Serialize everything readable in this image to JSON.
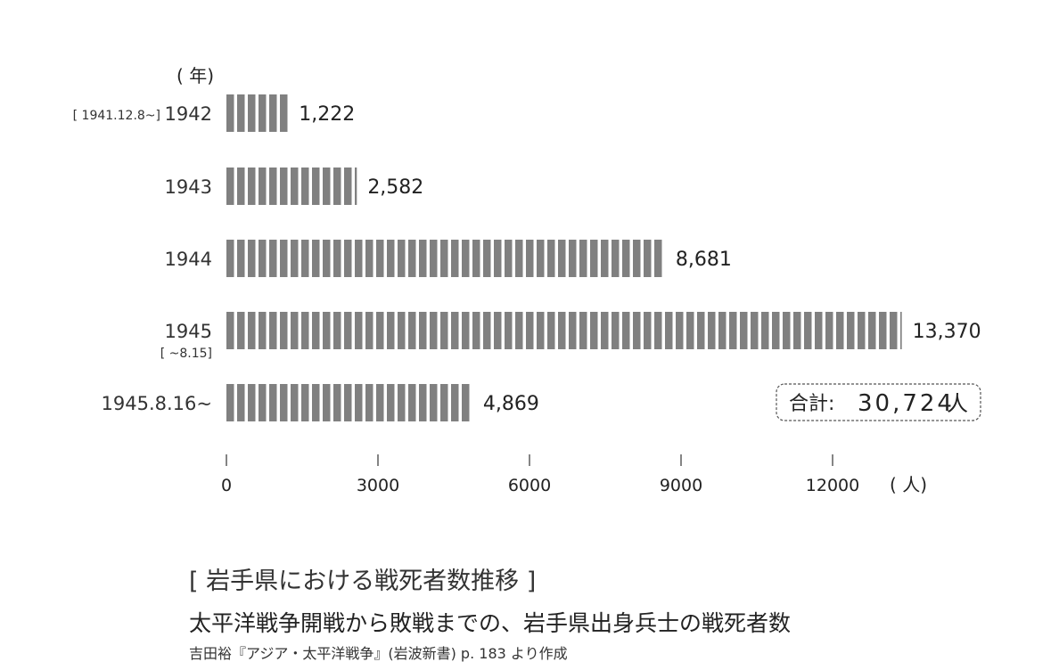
{
  "chart_data": {
    "type": "bar",
    "orientation": "horizontal",
    "y_unit_label": "( 年)",
    "x_unit_label": "( 人)",
    "categories": [
      {
        "label": "1942",
        "note": "[ 1941.12.8~]",
        "note_position": "left"
      },
      {
        "label": "1943",
        "note": "",
        "note_position": ""
      },
      {
        "label": "1944",
        "note": "",
        "note_position": ""
      },
      {
        "label": "1945",
        "note": "[ ~8.15]",
        "note_position": "below"
      },
      {
        "label": "1945.8.16~",
        "note": "",
        "note_position": ""
      }
    ],
    "values": [
      1222,
      2582,
      8681,
      13370,
      4869
    ],
    "value_labels": [
      "1,222",
      "2,582",
      "8,681",
      "13,370",
      "4,869"
    ],
    "xlim": [
      0,
      13370
    ],
    "x_ticks": [
      0,
      3000,
      6000,
      9000,
      12000
    ],
    "x_tick_labels": [
      "0",
      "3000",
      "6000",
      "9000",
      "12000"
    ],
    "bar_style": "striped",
    "grid": false,
    "total": {
      "label": "合計:",
      "value": "30,724",
      "unit": "人"
    },
    "colors": {
      "bar": "#808080",
      "text": "#222222",
      "box_border": "#555555"
    }
  },
  "caption": {
    "title": "[ 岩手県における戦死者数推移 ]",
    "subtitle": "太平洋戦争開戦から敗戦までの、岩手県出身兵士の戦死者数",
    "source": "吉田裕『アジア・太平洋戦争』(岩波新書) p. 183 より作成"
  }
}
